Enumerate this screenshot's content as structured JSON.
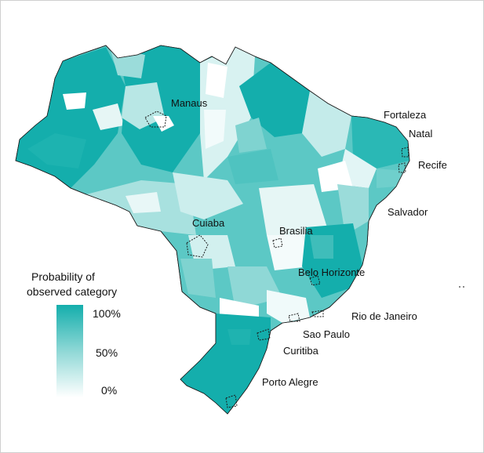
{
  "map": {
    "fill_color_high": "#14aeac",
    "fill_color_low": "#ffffff",
    "outline_color": "#1a1a1a",
    "cities": [
      {
        "name": "Manaus"
      },
      {
        "name": "Fortaleza"
      },
      {
        "name": "Natal"
      },
      {
        "name": "Recife"
      },
      {
        "name": "Salvador"
      },
      {
        "name": "Cuiaba"
      },
      {
        "name": "Brasilia"
      },
      {
        "name": "Belo Horizonte"
      },
      {
        "name": "Rio de Janeiro"
      },
      {
        "name": "Sao Paulo"
      },
      {
        "name": "Curitiba"
      },
      {
        "name": "Porto Alegre"
      }
    ]
  },
  "legend": {
    "title_line1": "Probability of",
    "title_line2": "observed category",
    "tick_high": "100%",
    "tick_mid": "50%",
    "tick_low": "0%"
  }
}
